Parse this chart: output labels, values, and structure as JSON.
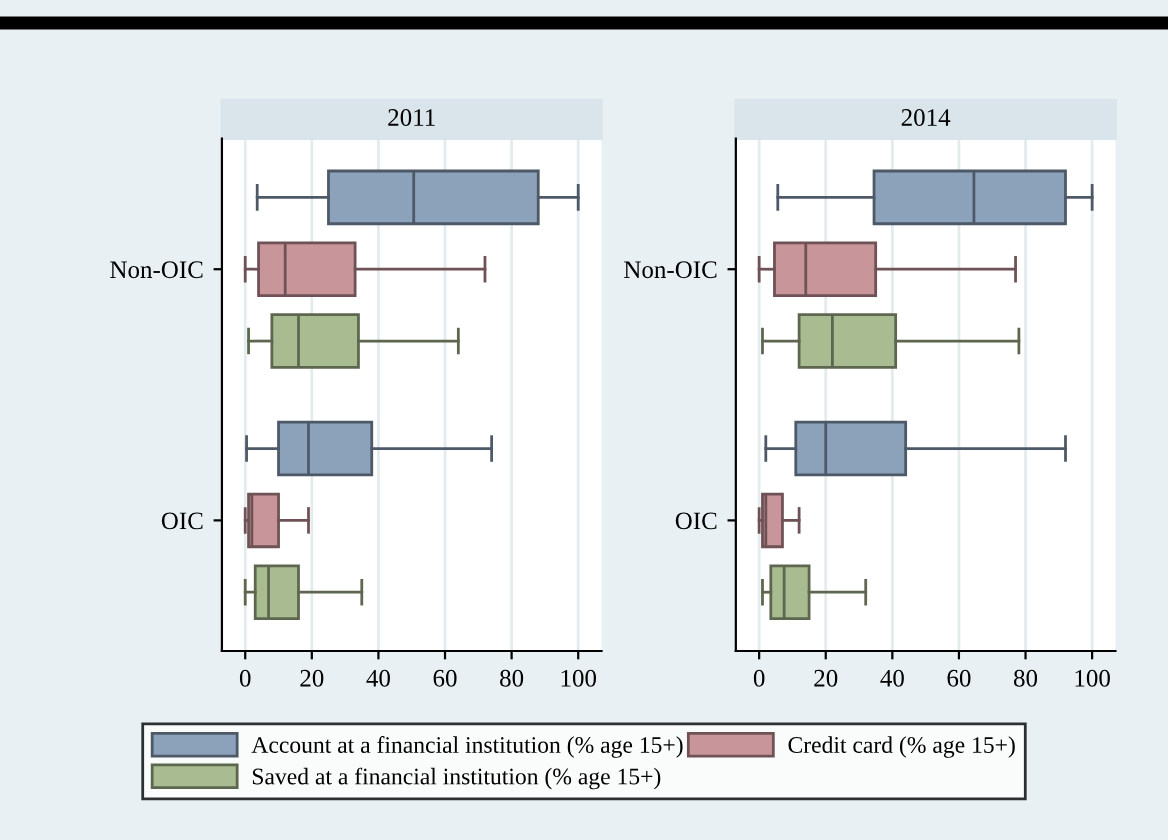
{
  "chart_data": [
    {
      "type": "box",
      "title": "2011",
      "orientation": "horizontal",
      "categories": [
        "Non-OIC",
        "OIC"
      ],
      "xlim": [
        -7,
        107
      ],
      "xticks": [
        0,
        20,
        40,
        60,
        80,
        100
      ],
      "grid": "x",
      "legend": "bottom",
      "series": [
        {
          "name": "Account at a financial institution (% age 15+)",
          "color": "#8ca2bb",
          "boxes": [
            {
              "low": 3.6,
              "q1": 25,
              "median": 50.6,
              "q3": 88,
              "high": 100
            },
            {
              "low": 0.4,
              "q1": 10,
              "median": 19,
              "q3": 38,
              "high": 74
            }
          ]
        },
        {
          "name": "Credit card (% age 15+)",
          "color": "#c8959a",
          "boxes": [
            {
              "low": 0,
              "q1": 4,
              "median": 12,
              "q3": 33,
              "high": 72
            },
            {
              "low": 0,
              "q1": 1,
              "median": 2,
              "q3": 10,
              "high": 19
            }
          ]
        },
        {
          "name": "Saved at a financial institution (% age 15+)",
          "color": "#a9bb91",
          "boxes": [
            {
              "low": 1,
              "q1": 8,
              "median": 16,
              "q3": 34,
              "high": 64
            },
            {
              "low": 0,
              "q1": 3,
              "median": 7,
              "q3": 16,
              "high": 35
            }
          ]
        }
      ]
    },
    {
      "type": "box",
      "title": "2014",
      "orientation": "horizontal",
      "categories": [
        "Non-OIC",
        "OIC"
      ],
      "xlim": [
        -7,
        107
      ],
      "xticks": [
        0,
        20,
        40,
        60,
        80,
        100
      ],
      "grid": "x",
      "legend": "bottom",
      "series": [
        {
          "name": "Account at a financial institution (% age 15+)",
          "color": "#8ca2bb",
          "boxes": [
            {
              "low": 5.6,
              "q1": 34.5,
              "median": 64.5,
              "q3": 92,
              "high": 100
            },
            {
              "low": 2,
              "q1": 11,
              "median": 20,
              "q3": 44,
              "high": 92
            }
          ]
        },
        {
          "name": "Credit card (% age 15+)",
          "color": "#c8959a",
          "boxes": [
            {
              "low": 0,
              "q1": 4.6,
              "median": 14,
              "q3": 35,
              "high": 77
            },
            {
              "low": 0,
              "q1": 1,
              "median": 2,
              "q3": 7,
              "high": 12
            }
          ]
        },
        {
          "name": "Saved at a financial institution (% age 15+)",
          "color": "#a9bb91",
          "boxes": [
            {
              "low": 1,
              "q1": 12,
              "median": 22,
              "q3": 41,
              "high": 78
            },
            {
              "low": 1,
              "q1": 3.5,
              "median": 7.5,
              "q3": 15,
              "high": 32
            }
          ]
        }
      ]
    }
  ]
}
